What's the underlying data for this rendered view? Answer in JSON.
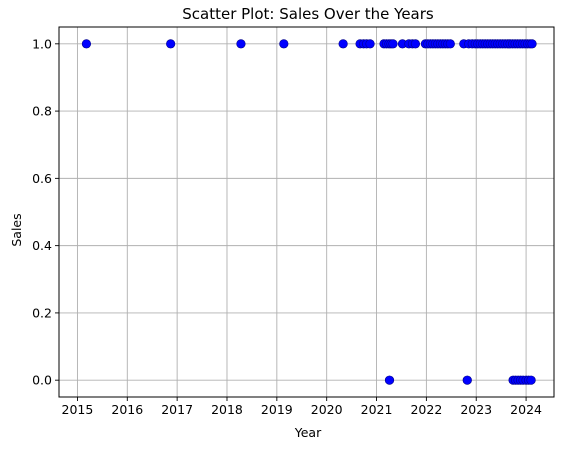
{
  "chart_data": {
    "type": "scatter",
    "title": "Scatter Plot: Sales Over the Years",
    "xlabel": "Year",
    "ylabel": "Sales",
    "xlim": [
      2014.63,
      2024.56
    ],
    "ylim": [
      -0.05,
      1.05
    ],
    "x_ticks": [
      2015,
      2016,
      2017,
      2018,
      2019,
      2020,
      2021,
      2022,
      2023,
      2024
    ],
    "x_tick_labels": [
      "2015",
      "2016",
      "2017",
      "2018",
      "2019",
      "2020",
      "2021",
      "2022",
      "2023",
      "2024"
    ],
    "y_ticks": [
      0.0,
      0.2,
      0.4,
      0.6,
      0.8,
      1.0
    ],
    "y_tick_labels": [
      "0.0",
      "0.2",
      "0.4",
      "0.6",
      "0.8",
      "1.0"
    ],
    "grid": true,
    "marker_color": "#0000ff",
    "marker_edge_color": "#00008b",
    "points": [
      {
        "x": 2015.18,
        "y": 1
      },
      {
        "x": 2016.87,
        "y": 1
      },
      {
        "x": 2018.28,
        "y": 1
      },
      {
        "x": 2019.14,
        "y": 1
      },
      {
        "x": 2020.33,
        "y": 1
      },
      {
        "x": 2020.67,
        "y": 1
      },
      {
        "x": 2020.74,
        "y": 1
      },
      {
        "x": 2020.8,
        "y": 1
      },
      {
        "x": 2020.87,
        "y": 1
      },
      {
        "x": 2021.15,
        "y": 1
      },
      {
        "x": 2021.2,
        "y": 1
      },
      {
        "x": 2021.25,
        "y": 1
      },
      {
        "x": 2021.29,
        "y": 1
      },
      {
        "x": 2021.33,
        "y": 1
      },
      {
        "x": 2021.52,
        "y": 1
      },
      {
        "x": 2021.65,
        "y": 1
      },
      {
        "x": 2021.72,
        "y": 1
      },
      {
        "x": 2021.78,
        "y": 1
      },
      {
        "x": 2021.98,
        "y": 1
      },
      {
        "x": 2022.03,
        "y": 1
      },
      {
        "x": 2022.08,
        "y": 1
      },
      {
        "x": 2022.13,
        "y": 1
      },
      {
        "x": 2022.18,
        "y": 1
      },
      {
        "x": 2022.23,
        "y": 1
      },
      {
        "x": 2022.28,
        "y": 1
      },
      {
        "x": 2022.33,
        "y": 1
      },
      {
        "x": 2022.38,
        "y": 1
      },
      {
        "x": 2022.43,
        "y": 1
      },
      {
        "x": 2022.48,
        "y": 1
      },
      {
        "x": 2022.75,
        "y": 1
      },
      {
        "x": 2022.85,
        "y": 1
      },
      {
        "x": 2022.92,
        "y": 1
      },
      {
        "x": 2022.98,
        "y": 1
      },
      {
        "x": 2023.03,
        "y": 1
      },
      {
        "x": 2023.08,
        "y": 1
      },
      {
        "x": 2023.13,
        "y": 1
      },
      {
        "x": 2023.18,
        "y": 1
      },
      {
        "x": 2023.23,
        "y": 1
      },
      {
        "x": 2023.28,
        "y": 1
      },
      {
        "x": 2023.33,
        "y": 1
      },
      {
        "x": 2023.38,
        "y": 1
      },
      {
        "x": 2023.43,
        "y": 1
      },
      {
        "x": 2023.48,
        "y": 1
      },
      {
        "x": 2023.53,
        "y": 1
      },
      {
        "x": 2023.58,
        "y": 1
      },
      {
        "x": 2023.63,
        "y": 1
      },
      {
        "x": 2023.68,
        "y": 1
      },
      {
        "x": 2023.73,
        "y": 1
      },
      {
        "x": 2023.78,
        "y": 1
      },
      {
        "x": 2023.83,
        "y": 1
      },
      {
        "x": 2023.88,
        "y": 1
      },
      {
        "x": 2023.93,
        "y": 1
      },
      {
        "x": 2023.98,
        "y": 1
      },
      {
        "x": 2024.03,
        "y": 1
      },
      {
        "x": 2024.08,
        "y": 1
      },
      {
        "x": 2024.12,
        "y": 1
      },
      {
        "x": 2021.26,
        "y": 0
      },
      {
        "x": 2022.82,
        "y": 0
      },
      {
        "x": 2023.74,
        "y": 0
      },
      {
        "x": 2023.79,
        "y": 0
      },
      {
        "x": 2023.84,
        "y": 0
      },
      {
        "x": 2023.89,
        "y": 0
      },
      {
        "x": 2023.94,
        "y": 0
      },
      {
        "x": 2024.0,
        "y": 0
      },
      {
        "x": 2024.05,
        "y": 0
      },
      {
        "x": 2024.1,
        "y": 0
      }
    ]
  }
}
